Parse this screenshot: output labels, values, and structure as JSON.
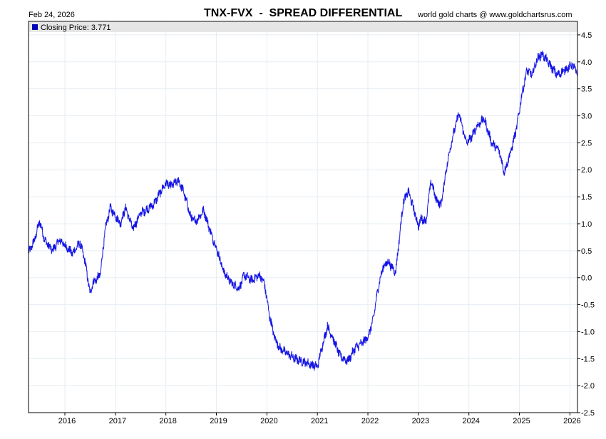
{
  "header": {
    "date": "Feb 24, 2026",
    "title": "TNX-FVX  -  SPREAD DIFFERENTIAL",
    "credit": "world gold charts @ www.goldchartsrus.com"
  },
  "colors": {
    "series": "#1414e6",
    "grid": "#e6edf3",
    "legend_bg": "#e6e6e6",
    "legend_swatch": "#0000b4"
  },
  "chart_data": {
    "type": "line",
    "title": "TNX-FVX  -  SPREAD DIFFERENTIAL",
    "legend": {
      "label": "Closing Price: 3.771",
      "position": "top-left"
    },
    "ylim": [
      -2.5,
      4.75
    ],
    "xlim": [
      2015.28,
      2026.15
    ],
    "y_ticks": [
      "4.5",
      "4.0",
      "3.5",
      "3.0",
      "2.5",
      "2.0",
      "1.5",
      "1.0",
      "0.5",
      "0.0",
      "-0.5",
      "-1.0",
      "-1.5",
      "-2.0",
      "-2.5"
    ],
    "x_ticks": [
      "2016",
      "2017",
      "2018",
      "2019",
      "2020",
      "2021",
      "2022",
      "2023",
      "2024",
      "2025",
      "2026"
    ],
    "series": [
      {
        "name": "Closing Price",
        "x": [
          2015.28,
          2015.4,
          2015.5,
          2015.6,
          2015.75,
          2015.9,
          2016.0,
          2016.15,
          2016.3,
          2016.4,
          2016.5,
          2016.55,
          2016.7,
          2016.8,
          2016.9,
          2017.0,
          2017.1,
          2017.2,
          2017.35,
          2017.5,
          2017.6,
          2017.75,
          2017.9,
          2018.0,
          2018.1,
          2018.25,
          2018.35,
          2018.5,
          2018.6,
          2018.75,
          2018.9,
          2019.0,
          2019.15,
          2019.3,
          2019.45,
          2019.55,
          2019.7,
          2019.85,
          2019.95,
          2020.05,
          2020.15,
          2020.25,
          2020.4,
          2020.55,
          2020.7,
          2020.85,
          2021.0,
          2021.1,
          2021.2,
          2021.3,
          2021.45,
          2021.6,
          2021.75,
          2021.9,
          2022.0,
          2022.1,
          2022.2,
          2022.3,
          2022.4,
          2022.55,
          2022.7,
          2022.8,
          2022.9,
          2023.0,
          2023.05,
          2023.15,
          2023.25,
          2023.35,
          2023.45,
          2023.55,
          2023.65,
          2023.8,
          2023.95,
          2024.05,
          2024.15,
          2024.3,
          2024.45,
          2024.6,
          2024.7,
          2024.85,
          2024.95,
          2025.05,
          2025.15,
          2025.25,
          2025.35,
          2025.45,
          2025.6,
          2025.75,
          2025.9,
          2026.05,
          2026.15
        ],
        "values": [
          0.45,
          0.7,
          1.05,
          0.7,
          0.5,
          0.7,
          0.6,
          0.45,
          0.65,
          0.3,
          -0.3,
          -0.1,
          0.05,
          0.9,
          1.3,
          1.15,
          1.0,
          1.3,
          0.9,
          1.2,
          1.25,
          1.35,
          1.6,
          1.75,
          1.7,
          1.8,
          1.6,
          1.1,
          1.05,
          1.25,
          0.8,
          0.55,
          0.1,
          -0.1,
          -0.2,
          0.05,
          -0.05,
          0.05,
          -0.1,
          -0.7,
          -1.1,
          -1.3,
          -1.4,
          -1.5,
          -1.55,
          -1.6,
          -1.65,
          -1.25,
          -0.9,
          -1.1,
          -1.45,
          -1.55,
          -1.3,
          -1.2,
          -1.1,
          -0.8,
          -0.2,
          0.2,
          0.3,
          0.1,
          1.4,
          1.6,
          1.3,
          0.95,
          1.1,
          1.05,
          1.8,
          1.45,
          1.35,
          2.0,
          2.5,
          3.05,
          2.5,
          2.6,
          2.8,
          2.95,
          2.5,
          2.35,
          1.95,
          2.4,
          2.8,
          3.4,
          3.85,
          3.75,
          4.05,
          4.15,
          3.95,
          3.75,
          3.85,
          3.95,
          3.771
        ]
      }
    ]
  }
}
